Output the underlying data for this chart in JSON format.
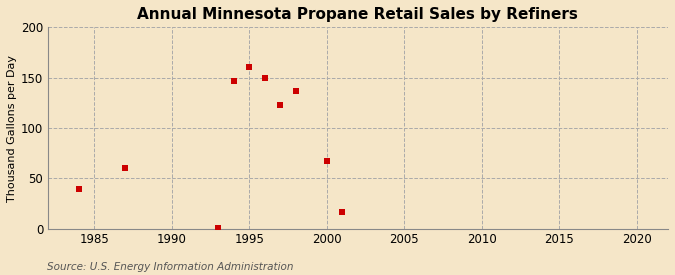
{
  "title": "Annual Minnesota Propane Retail Sales by Refiners",
  "ylabel": "Thousand Gallons per Day",
  "source": "Source: U.S. Energy Information Administration",
  "background_color": "#f5e6c8",
  "plot_background_color": "#f5e6c8",
  "x_data": [
    1984,
    1987,
    1993,
    1994,
    1995,
    1996,
    1997,
    1998,
    2000,
    2001
  ],
  "y_data": [
    40,
    60,
    1,
    147,
    161,
    150,
    123,
    137,
    67,
    17
  ],
  "marker_color": "#cc0000",
  "marker_size": 5,
  "marker_style": "s",
  "xlim": [
    1982,
    2022
  ],
  "ylim": [
    0,
    200
  ],
  "xticks": [
    1985,
    1990,
    1995,
    2000,
    2005,
    2010,
    2015,
    2020
  ],
  "yticks": [
    0,
    50,
    100,
    150,
    200
  ],
  "grid_color": "#aaaaaa",
  "grid_style": "--",
  "title_fontsize": 11,
  "label_fontsize": 8,
  "tick_fontsize": 8.5,
  "source_fontsize": 7.5
}
